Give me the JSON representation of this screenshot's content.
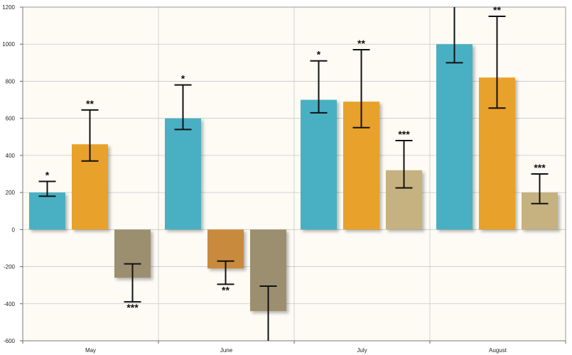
{
  "chart_data": {
    "type": "bar",
    "categories": [
      "May",
      "June",
      "July",
      "August"
    ],
    "ylim": [
      -600,
      1200
    ],
    "yticks": [
      -600,
      -400,
      -200,
      0,
      200,
      400,
      600,
      800,
      1000,
      1200
    ],
    "ytick_labels": [
      "-600",
      "-400",
      "-200",
      "0",
      "200",
      "400",
      "600",
      "800",
      "1000",
      "1200"
    ],
    "grid": true,
    "colors": {
      "background": "#fdfbf4",
      "grid": "#c8c8c8",
      "bar_palette": [
        [
          "#4ab0c4",
          "#4ab0c4",
          "#4ab0c4",
          "#4ab0c4"
        ],
        [
          "#e8a12a",
          "#c88a3c",
          "#e8a12a",
          "#e8a12a"
        ],
        [
          "#9c8f70",
          "#9c8f70",
          "#c6b280",
          "#c6b280"
        ]
      ]
    },
    "series": [
      {
        "values": [
          200,
          600,
          700,
          1000
        ],
        "errors": [
          [
            180,
            260
          ],
          [
            540,
            780
          ],
          [
            630,
            910
          ],
          [
            900,
            1250
          ]
        ],
        "labels": [
          "*",
          "*",
          "*",
          ""
        ]
      },
      {
        "values": [
          460,
          -210,
          690,
          820
        ],
        "errors": [
          [
            370,
            645
          ],
          [
            -295,
            -170
          ],
          [
            550,
            970
          ],
          [
            655,
            1150
          ]
        ],
        "labels": [
          "**",
          "**",
          "**",
          "**"
        ]
      },
      {
        "values": [
          -260,
          -440,
          320,
          200
        ],
        "errors": [
          [
            -390,
            -185
          ],
          [
            -620,
            -305
          ],
          [
            225,
            480
          ],
          [
            140,
            300
          ]
        ],
        "labels": [
          "***",
          "",
          "***",
          "***"
        ]
      }
    ]
  }
}
